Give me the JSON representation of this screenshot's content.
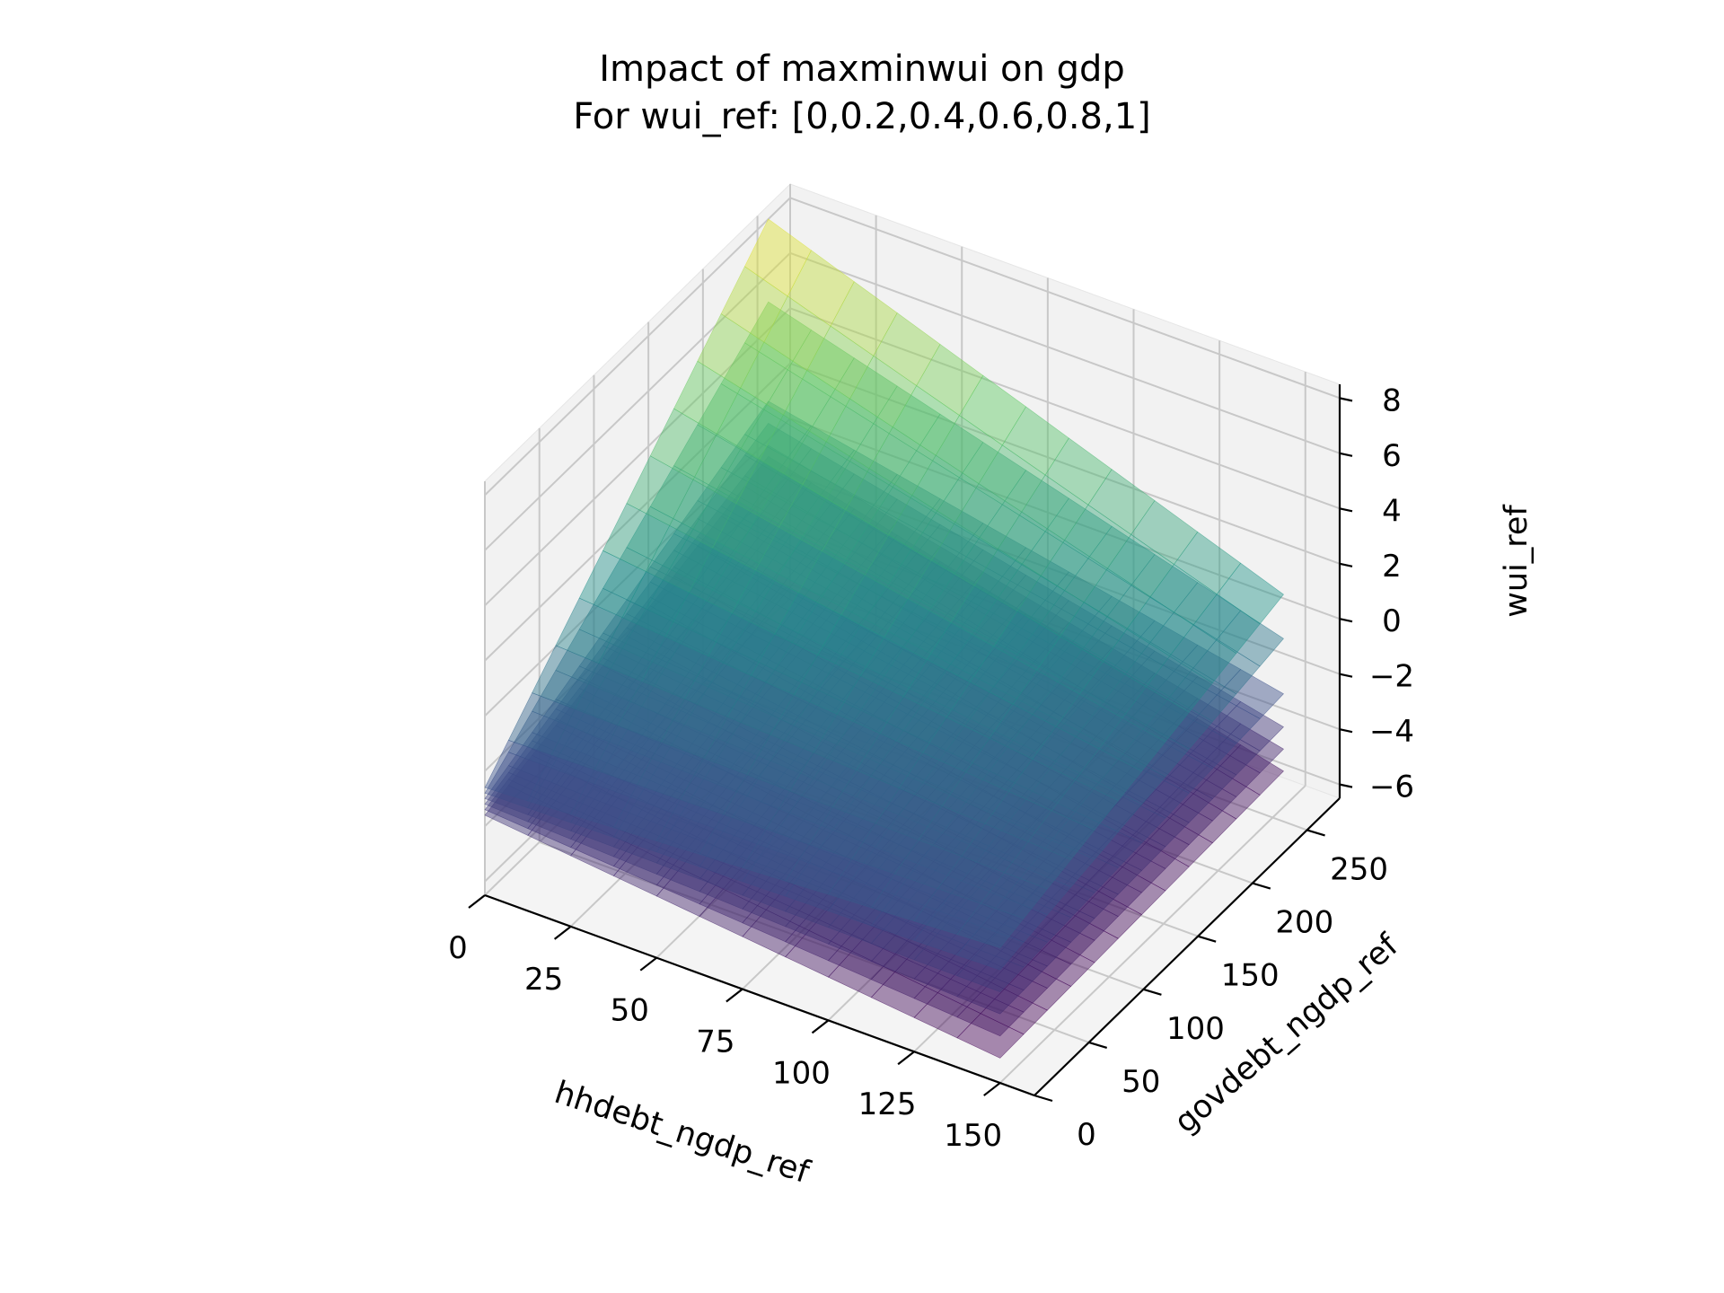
{
  "chart_data": {
    "type": "surface3d",
    "title_lines": [
      "Impact of maxminwui on gdp",
      "For wui_ref: [0,0.2,0.4,0.6,0.8,1]"
    ],
    "xlabel": "hhdebt_ngdp_ref",
    "ylabel": "govdebt_ngdp_ref",
    "zlabel": "wui_ref",
    "xlim": [
      0,
      160
    ],
    "ylim": [
      0,
      280
    ],
    "zlim": [
      -6.5,
      8.5
    ],
    "x_ticks": [
      "0",
      "25",
      "50",
      "75",
      "100",
      "125",
      "150"
    ],
    "x_tick_values": [
      0,
      25,
      50,
      75,
      100,
      125,
      150
    ],
    "y_ticks": [
      "0",
      "50",
      "100",
      "150",
      "200",
      "250"
    ],
    "y_tick_values": [
      0,
      50,
      100,
      150,
      200,
      250
    ],
    "z_ticks": [
      "−6",
      "−4",
      "−2",
      "0",
      "2",
      "4",
      "6",
      "8"
    ],
    "z_tick_values": [
      -6,
      -4,
      -2,
      0,
      2,
      4,
      6,
      8
    ],
    "grid": true,
    "colormap": "viridis",
    "series": [
      {
        "wui_ref": 0,
        "corners": {
          "x0y0": -3.6,
          "x1y0": -5.6,
          "x0y1": -0.6,
          "x1y1": -5.2
        }
      },
      {
        "wui_ref": 0.2,
        "corners": {
          "x0y0": -3.4,
          "x1y0": -4.8,
          "x0y1": -0.2,
          "x1y1": -4.4
        }
      },
      {
        "wui_ref": 0.4,
        "corners": {
          "x0y0": -3.2,
          "x1y0": -4.0,
          "x0y1": 0.6,
          "x1y1": -3.6
        }
      },
      {
        "wui_ref": 0.6,
        "corners": {
          "x0y0": -3.0,
          "x1y0": -3.2,
          "x0y1": 1.4,
          "x1y1": -2.4
        }
      },
      {
        "wui_ref": 0.8,
        "corners": {
          "x0y0": -2.8,
          "x1y0": -2.4,
          "x0y1": 5.0,
          "x1y1": -0.4
        }
      },
      {
        "wui_ref": 1,
        "corners": {
          "x0y0": -2.6,
          "x1y0": -1.6,
          "x0y1": 8.0,
          "x1y1": 1.2
        }
      }
    ]
  }
}
